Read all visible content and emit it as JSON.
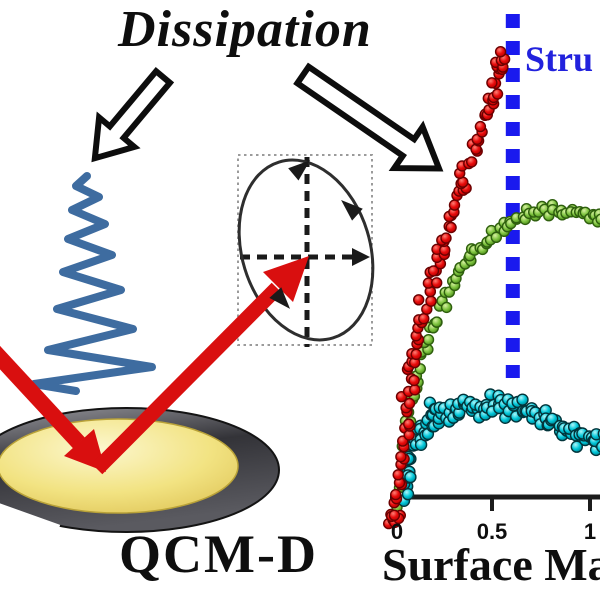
{
  "header": {
    "title": "Dissipation"
  },
  "labels": {
    "sensor": "QCM-D",
    "structure_annotation": "Stru",
    "x_axis_label": "Surface Ma"
  },
  "colors": {
    "text_black": "#0e0e0e",
    "annotation_blue": "#2222dd",
    "threshold_blue": "#1a1aee",
    "beam_red": "#d90f0f",
    "spring_blue": "#3e6ca0",
    "disk_gold": "#f2e382",
    "disk_ring_gray": "#3a3a40"
  },
  "chart_data": {
    "type": "scatter",
    "title": "",
    "xlabel": "Surface Ma",
    "ylabel": "",
    "x_ticks": [
      "0",
      "0.5",
      "1"
    ],
    "x_tick_values": [
      0,
      0.5,
      1
    ],
    "xlim": [
      0,
      1.05
    ],
    "ylim": [
      0,
      1.05
    ],
    "grid": false,
    "legend": "none",
    "vline": {
      "x": 0.6,
      "color": "#1a1aee",
      "style": "dashed",
      "label": "Stru"
    },
    "series": [
      {
        "name": "green-plateau",
        "marker": "circle",
        "radius": 5,
        "n_points": 90,
        "jitter_x": 0.026,
        "jitter_y": 0.022,
        "fill_center": "#d8f0a2",
        "fill_mid": "#7fc440",
        "fill_edge": "#3c7c12",
        "edge_color": "#2f5f0e",
        "trend": [
          [
            0.01,
            -0.01
          ],
          [
            0.03,
            0.08
          ],
          [
            0.056,
            0.16
          ],
          [
            0.087,
            0.23
          ],
          [
            0.12,
            0.3
          ],
          [
            0.17,
            0.36
          ],
          [
            0.22,
            0.41
          ],
          [
            0.28,
            0.46
          ],
          [
            0.34,
            0.51
          ],
          [
            0.41,
            0.545
          ],
          [
            0.47,
            0.575
          ],
          [
            0.55,
            0.6
          ],
          [
            0.62,
            0.615
          ],
          [
            0.69,
            0.63
          ],
          [
            0.77,
            0.64
          ],
          [
            0.85,
            0.64
          ],
          [
            0.92,
            0.635
          ],
          [
            1.0,
            0.625
          ],
          [
            1.06,
            0.62
          ]
        ]
      },
      {
        "name": "cyan-band",
        "marker": "circle",
        "radius": 5.5,
        "n_points": 130,
        "jitter_x": 0.03,
        "jitter_y": 0.042,
        "fill_center": "#aef6fa",
        "fill_mid": "#00c6d8",
        "fill_edge": "#00717e",
        "edge_color": "#02343a",
        "trend": [
          [
            0.035,
            0.0
          ],
          [
            0.065,
            0.08
          ],
          [
            0.1,
            0.13
          ],
          [
            0.15,
            0.155
          ],
          [
            0.21,
            0.18
          ],
          [
            0.28,
            0.19
          ],
          [
            0.36,
            0.2
          ],
          [
            0.45,
            0.205
          ],
          [
            0.54,
            0.2
          ],
          [
            0.63,
            0.19
          ],
          [
            0.72,
            0.18
          ],
          [
            0.81,
            0.165
          ],
          [
            0.9,
            0.145
          ],
          [
            0.99,
            0.13
          ],
          [
            1.06,
            0.115
          ]
        ]
      },
      {
        "name": "red-steep-rise",
        "marker": "circle",
        "radius": 5,
        "n_points": 105,
        "jitter_x": 0.045,
        "jitter_y": 0.02,
        "fill_center": "#ff8076",
        "fill_mid": "#e80b0b",
        "fill_edge": "#a80000",
        "edge_color": "#6b0000",
        "trend": [
          [
            -0.015,
            -0.06
          ],
          [
            -0.01,
            -0.04
          ],
          [
            0.015,
            0.055
          ],
          [
            0.035,
            0.145
          ],
          [
            0.055,
            0.22
          ],
          [
            0.08,
            0.3
          ],
          [
            0.11,
            0.36
          ],
          [
            0.15,
            0.43
          ],
          [
            0.19,
            0.5
          ],
          [
            0.235,
            0.56
          ],
          [
            0.285,
            0.63
          ],
          [
            0.34,
            0.7
          ],
          [
            0.39,
            0.76
          ],
          [
            0.445,
            0.83
          ],
          [
            0.49,
            0.89
          ],
          [
            0.525,
            0.945
          ],
          [
            0.555,
            0.985
          ]
        ]
      }
    ]
  }
}
